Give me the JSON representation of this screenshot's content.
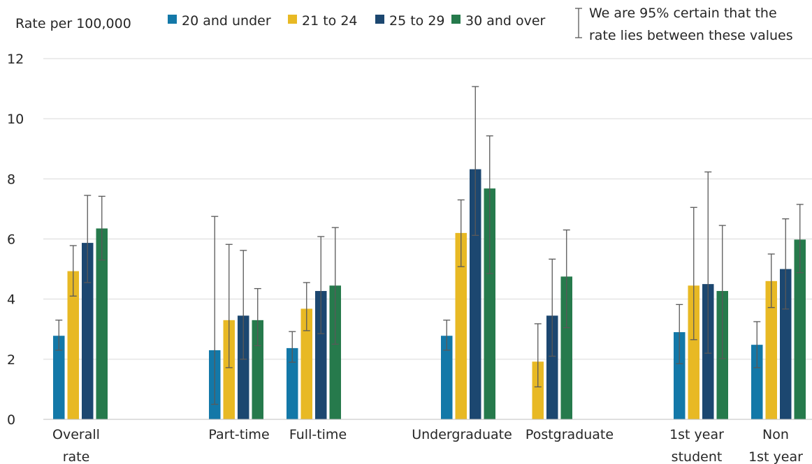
{
  "chart_data": {
    "type": "bar",
    "ylabel": "Rate per 100,000",
    "ylim": [
      0,
      12
    ],
    "yticks": [
      "0",
      "2",
      "4",
      "6",
      "8",
      "10",
      "12"
    ],
    "grid": true,
    "legend_position": "top",
    "ci_legend": [
      "We are 95% certain that the",
      "rate lies between these values"
    ],
    "series": [
      {
        "name": "20 and under",
        "color": "#1378a8"
      },
      {
        "name": "21 to 24",
        "color": "#e8b924"
      },
      {
        "name": "25 to 29",
        "color": "#1c4770"
      },
      {
        "name": "30 and over",
        "color": "#267a4c"
      }
    ],
    "groups": [
      {
        "label": [
          "Overall",
          "rate"
        ],
        "values": [
          2.78,
          4.93,
          5.87,
          6.35
        ],
        "ci_low": [
          2.3,
          4.1,
          4.55,
          5.3
        ],
        "ci_high": [
          3.3,
          5.78,
          7.45,
          7.42
        ]
      },
      {
        "label": [
          "Part-time"
        ],
        "values": [
          2.3,
          3.3,
          3.45,
          3.3
        ],
        "ci_low": [
          0.5,
          1.72,
          2.0,
          2.45
        ],
        "ci_high": [
          6.75,
          5.82,
          5.62,
          4.35
        ]
      },
      {
        "label": [
          "Full-time"
        ],
        "values": [
          2.37,
          3.68,
          4.27,
          4.45
        ],
        "ci_low": [
          1.9,
          2.95,
          2.85,
          2.5
        ],
        "ci_high": [
          2.92,
          4.55,
          6.08,
          6.38
        ]
      },
      {
        "label": [
          "Undergraduate"
        ],
        "values": [
          2.78,
          6.2,
          8.32,
          7.68
        ],
        "ci_low": [
          2.3,
          5.08,
          6.12,
          4.85
        ],
        "ci_high": [
          3.3,
          7.3,
          11.07,
          9.43
        ]
      },
      {
        "label": [
          "Postgraduate"
        ],
        "values": [
          1.92,
          3.45,
          4.75
        ],
        "ci_low": [
          1.08,
          2.1,
          3.05
        ],
        "ci_high": [
          3.18,
          5.33,
          6.3
        ],
        "series_index": [
          1,
          2,
          3
        ]
      },
      {
        "label": [
          "1st year",
          "student"
        ],
        "values": [
          2.9,
          4.45,
          4.5,
          4.27
        ],
        "ci_low": [
          1.85,
          2.65,
          2.2,
          2.02
        ],
        "ci_high": [
          3.82,
          7.05,
          8.23,
          6.45
        ]
      },
      {
        "label": [
          "Non",
          "1st year"
        ],
        "values": [
          2.48,
          4.6,
          5.0,
          5.98
        ],
        "ci_low": [
          1.72,
          3.72,
          3.67,
          4.88
        ],
        "ci_high": [
          3.25,
          5.5,
          6.67,
          7.15
        ]
      }
    ]
  }
}
